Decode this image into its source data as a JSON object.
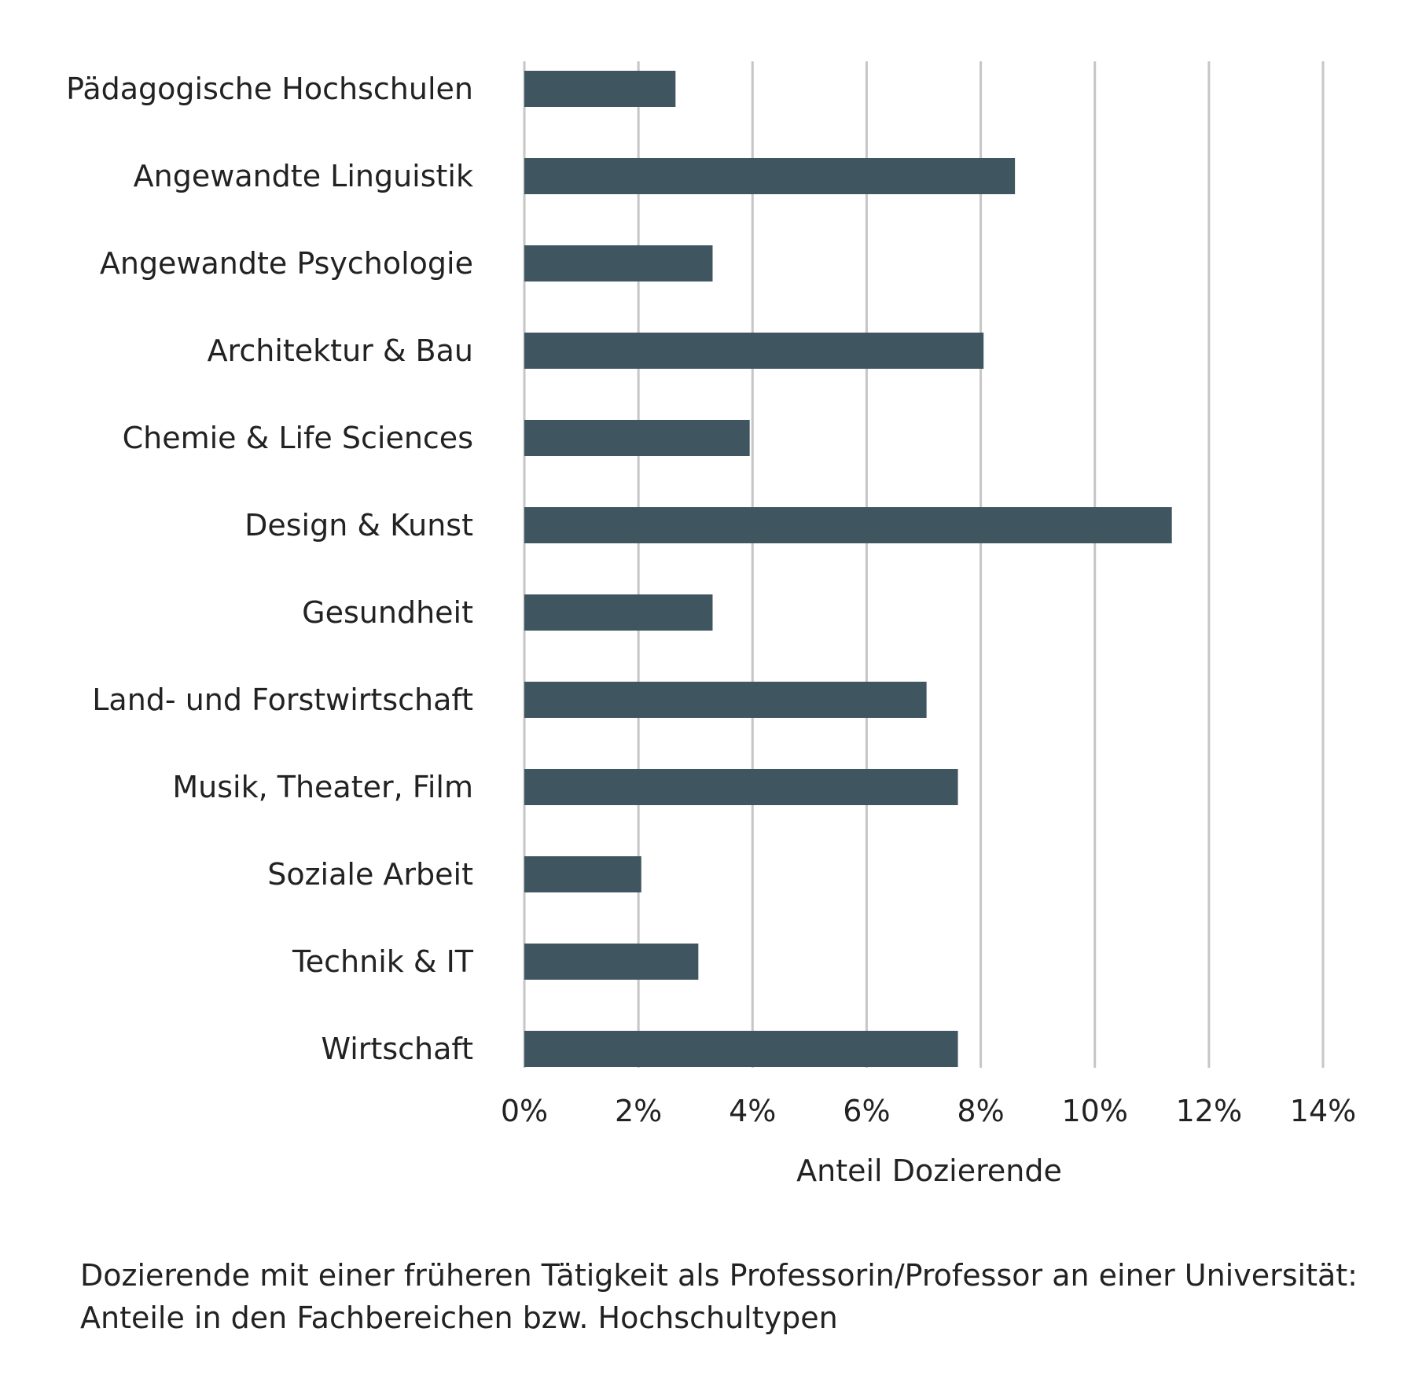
{
  "chart_data": {
    "type": "bar",
    "orientation": "horizontal",
    "categories": [
      "Pädagogische Hochschulen",
      "Angewandte Linguistik",
      "Angewandte Psychologie",
      "Architektur & Bau",
      "Chemie & Life Sciences",
      "Design & Kunst",
      "Gesundheit",
      "Land- und Forstwirtschaft",
      "Musik, Theater, Film",
      "Soziale Arbeit",
      "Technik & IT",
      "Wirtschaft"
    ],
    "values": [
      2.65,
      8.6,
      3.3,
      8.05,
      3.95,
      11.35,
      3.3,
      7.05,
      7.6,
      2.05,
      3.05,
      7.6
    ],
    "value_unit": "%",
    "xlim": [
      0,
      14
    ],
    "xticks": [
      0,
      2,
      4,
      6,
      8,
      10,
      12,
      14
    ],
    "tick_labels": [
      "0%",
      "2%",
      "4%",
      "6%",
      "8%",
      "10%",
      "12%",
      "14%"
    ],
    "xlabel": "Anteil Dozierende",
    "ylabel": "",
    "grid": "vertical",
    "bar_color": "#3f5560",
    "grid_color": "#c6c6c6"
  },
  "caption": {
    "line1": "Dozierende mit einer früheren Tätigkeit als Professorin/Professor an einer Universität:",
    "line2": "Anteile in den Fachbereichen bzw. Hochschultypen"
  }
}
